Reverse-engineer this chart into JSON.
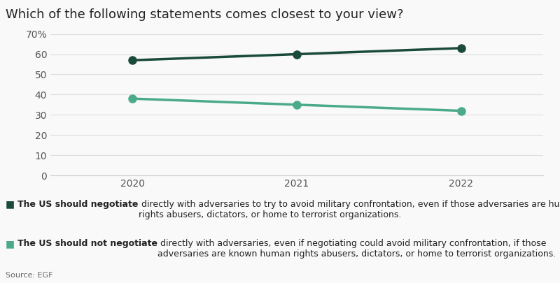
{
  "title": "Which of the following statements comes closest to your view?",
  "years": [
    2020,
    2021,
    2022
  ],
  "negotiate_values": [
    57,
    60,
    63
  ],
  "not_negotiate_values": [
    38,
    35,
    32
  ],
  "negotiate_color": "#1a4a3a",
  "not_negotiate_color": "#4aaa8a",
  "background_color": "#f9f9f9",
  "ylim": [
    0,
    70
  ],
  "yticks": [
    0,
    10,
    20,
    30,
    40,
    50,
    60,
    70
  ],
  "ytick_labels": [
    "0",
    "10",
    "20",
    "30",
    "40",
    "50",
    "60",
    "70%"
  ],
  "legend1_bold": "The US should negotiate",
  "legend1_rest": " directly with adversaries to try to avoid military confrontation, even if those adversaries are human\nrights abusers, dictators, or home to terrorist organizations.",
  "legend2_bold": "The US should not negotiate",
  "legend2_rest": " directly with adversaries, even if negotiating could avoid military confrontation, if those\nadversaries are known human rights abusers, dictators, or home to terrorist organizations.",
  "source": "Source: EGF",
  "title_fontsize": 13,
  "axis_fontsize": 10,
  "legend_fontsize": 9,
  "source_fontsize": 8,
  "line_width": 2.5,
  "marker_size": 8
}
